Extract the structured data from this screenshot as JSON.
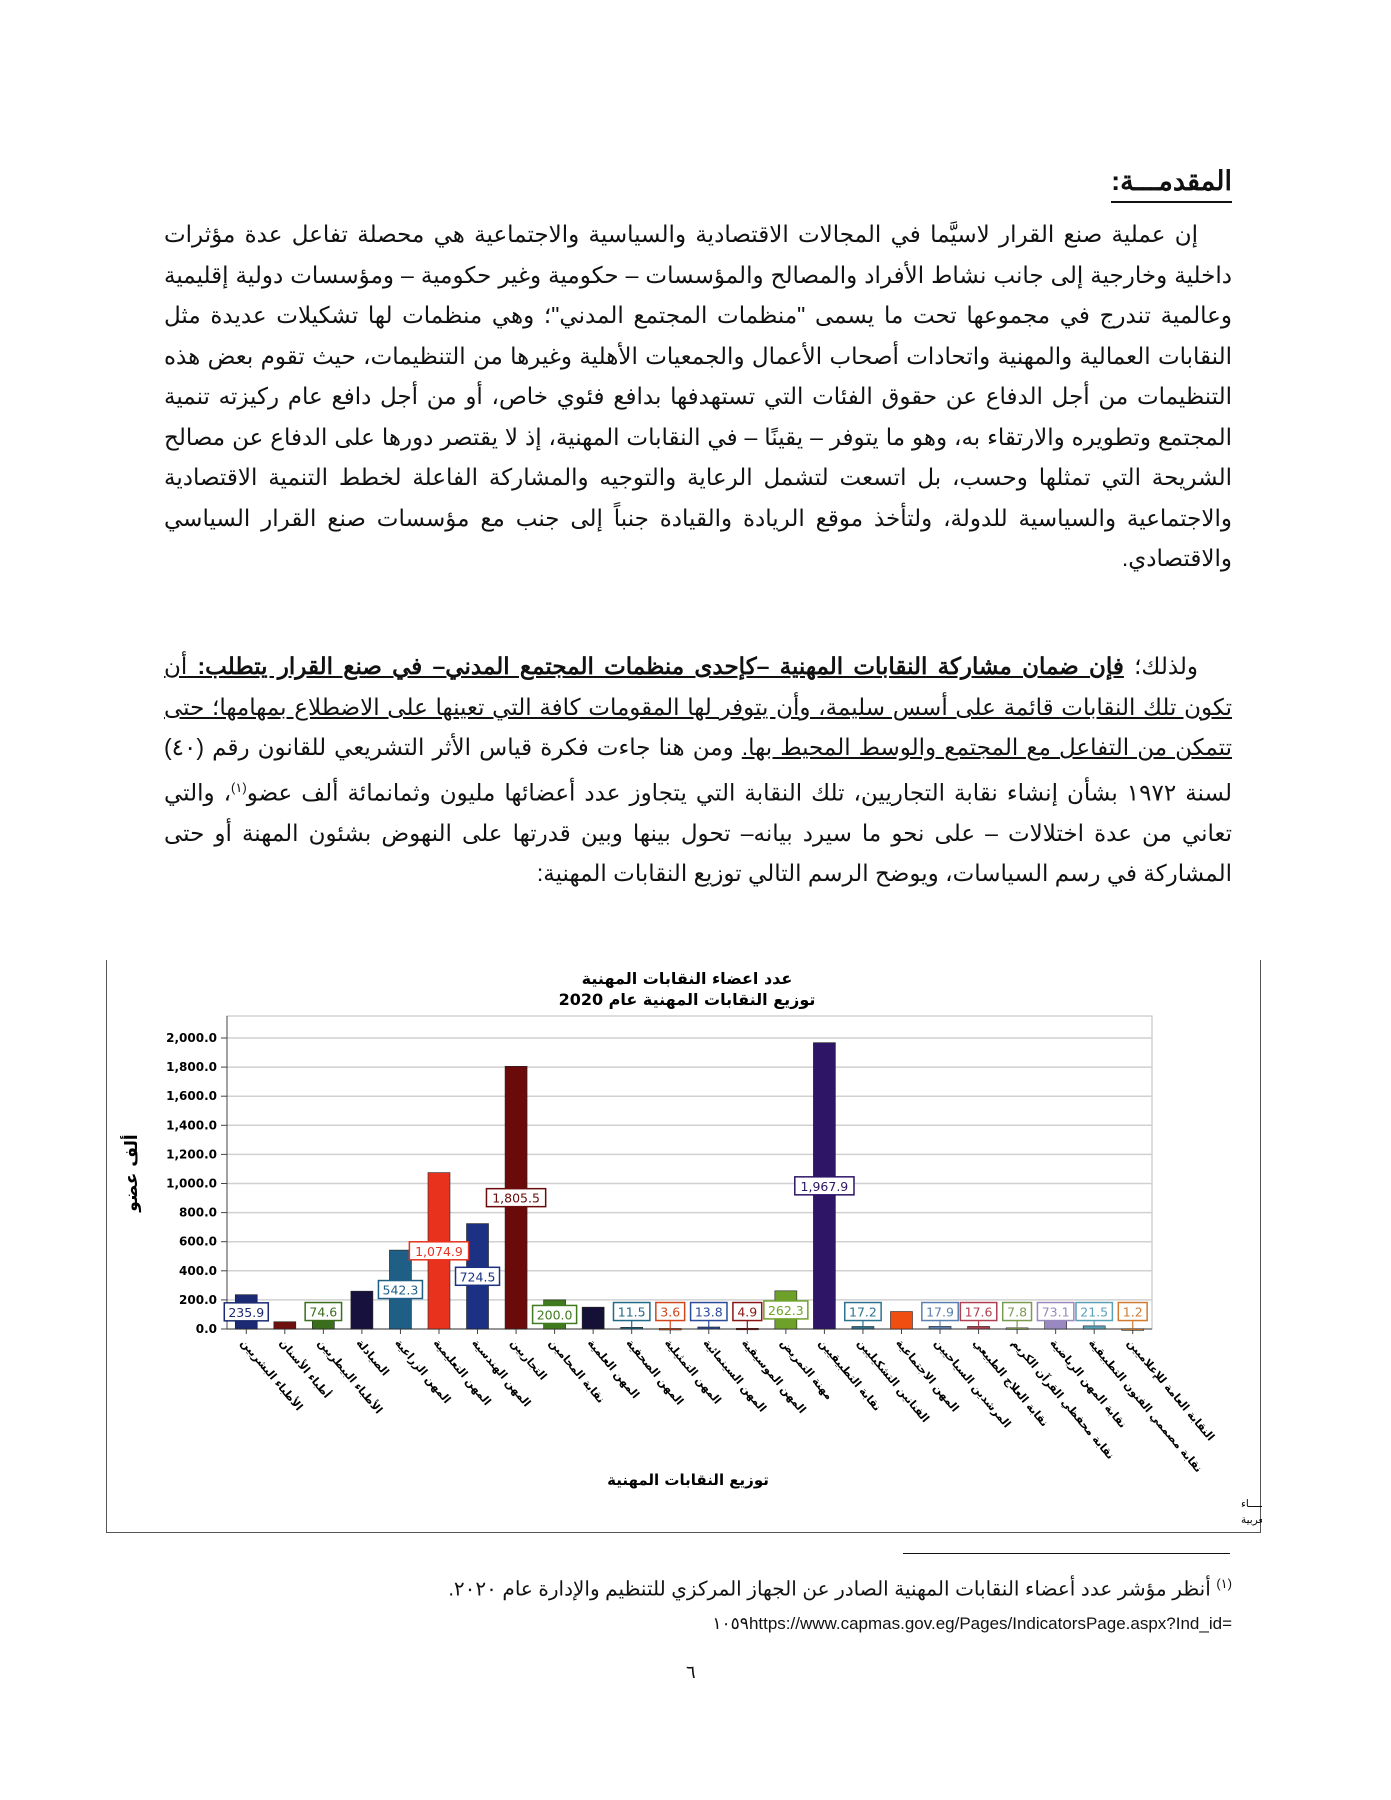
{
  "heading": "المقدمـــة:",
  "paragraph1": "إن عملية صنع القرار لاسيَّما في المجالات الاقتصادية والسياسية والاجتماعية هي محصلة تفاعل عدة مؤثرات داخلية وخارجية إلى جانب نشاط الأفراد والمصالح والمؤسسات – حكومية وغير حكومية – ومؤسسات دولية إقليمية وعالمية تندرج في مجموعها تحت ما يسمى \"منظمات المجتمع المدني\"؛ وهي منظمات لها تشكيلات عديدة مثل النقابات العمالية والمهنية واتحادات أصحاب الأعمال والجمعيات الأهلية وغيرها من التنظيمات، حيث تقوم بعض هذه التنظيمات من أجل الدفاع عن حقوق الفئات التي تستهدفها بدافع فئوي خاص، أو من أجل دافع عام ركيزته تنمية المجتمع وتطويره والارتقاء به، وهو ما يتوفر – يقينًا – في النقابات المهنية، إذ لا يقتصر دورها على الدفاع عن مصالح الشريحة التي تمثلها وحسب، بل اتسعت لتشمل الرعاية والتوجيه والمشاركة الفاعلة لخطط التنمية الاقتصادية والاجتماعية والسياسية للدولة، ولتأخذ موقع الريادة والقيادة جنباً إلى جنب مع مؤسسات صنع القرار السياسي والاقتصادي.",
  "paragraph2": {
    "lead": "ولذلك؛ ",
    "bold_underlined": "فإن ضمان مشاركة النقابات المهنية –كإحدى منظمات المجتمع المدني– في صنع القرار يتطلب:",
    "underlined": " أن تكون تلك النقابات قائمة على أسس سليمة، وأن يتوفر لها المقومات كافة التي تعينها على الاضطلاع بمهامها؛ حتى تتمكن من التفاعل مع المجتمع والوسط المحيط بها.",
    "text_before_note": " ومن هنا جاءت فكرة قياس الأثر التشريعي للقانون رقم (٤٠) لسنة ١٩٧٢ بشأن إنشاء نقابة التجاريين، تلك النقابة التي يتجاوز عدد أعضائها مليون وثمانمائة ألف عضو",
    "note_ref": "(١)",
    "text_after_note": "، والتي تعاني من عدة اختلالات – على نحو ما سيرد بيانه– تحول بينها وبين قدرتها على النهوض بشئون المهنة أو حتى المشاركة في رسم السياسات، ويوضح الرسم التالي توزيع النقابات المهنية:"
  },
  "chart_data": {
    "type": "bar",
    "title": "عدد اعضاء النقابات المهنية",
    "subtitle": "توزيع النقابات المهنية عام 2020",
    "xlabel": "توزيع النقابات المهنية",
    "ylabel": "ألف عضو",
    "ylim": [
      0,
      2000
    ],
    "yticks": [
      "0.0",
      "200.0",
      "400.0",
      "600.0",
      "800.0",
      "1,000.0",
      "1,200.0",
      "1,400.0",
      "1,600.0",
      "1,800.0",
      "2,000.0"
    ],
    "grid": true,
    "categories": [
      "الأطباء البشريين",
      "أطباء الأسنان",
      "الأطباء البيطريين",
      "الصيادلة",
      "المهن الزراعية",
      "المهن التعليمية",
      "المهن الهندسية",
      "التجاريين",
      "نقابة المحامين",
      "المهن العلمية",
      "المهن الصحفية",
      "المهن التمثيلية",
      "المهن السينمائية",
      "المهن الموسيقية",
      "مهنة التمريض",
      "نقابة التطبيقيين",
      "الفنانين التشكيليين",
      "المهن الاجتماعية",
      "المرشدين السياحيين",
      "نقابة العلاج الطبيعي",
      "نقابة محفظي القرآن الكريم",
      "نقابة المهن الرياضية",
      "نقابة مصممي الفنون التطبيقية",
      "النقابة العامة للإعلاميين"
    ],
    "values": [
      235.9,
      50,
      74.6,
      260,
      542.3,
      1074.9,
      724.5,
      1805.5,
      200.0,
      150,
      11.5,
      3.6,
      13.8,
      4.9,
      262.3,
      1967.9,
      17.2,
      120,
      17.9,
      17.6,
      7.8,
      73.1,
      21.5,
      1.2
    ],
    "data_labels": [
      "235.9",
      "",
      "74.6",
      "",
      "542.3",
      "1,074.9",
      "724.5",
      "1,805.5",
      "200.0",
      "",
      "11.5",
      "3.6",
      "13.8",
      "4.9",
      "262.3",
      "1,967.9",
      "17.2",
      "",
      "17.9",
      "17.6",
      "7.8",
      "73.1",
      "21.5",
      "1.2"
    ],
    "colors": [
      "#1b2a72",
      "#6e1010",
      "#3a6e1c",
      "#17113d",
      "#1f5f86",
      "#e8321e",
      "#1c3183",
      "#6a0a0a",
      "#3f7a1f",
      "#151036",
      "#1f6a8a",
      "#d0461a",
      "#2a4a9a",
      "#8a1515",
      "#6ea12a",
      "#2e1566",
      "#2a7290",
      "#f04e10",
      "#5a7fb0",
      "#b04050",
      "#7a9a50",
      "#9a88c0",
      "#5aa0b8",
      "#d07a30"
    ],
    "source_lines": [
      "حقوق الملكية للجهـــاز المركزي للتعبئة العـــامة والأحصــــاء",
      "المصدر الأساسي للأحصاءات الرسمية لجمهورية مصر العربية"
    ]
  },
  "footnote": {
    "marker": "(١)",
    "text": " أنظر مؤشر عدد أعضاء النقابات المهنية الصادر عن الجهاز المركزي للتنظيم والإدارة عام ٢٠٢٠.",
    "url": "١٠٥٩https://www.capmas.gov.eg/Pages/IndicatorsPage.aspx?Ind_id="
  },
  "page_number": "٦"
}
